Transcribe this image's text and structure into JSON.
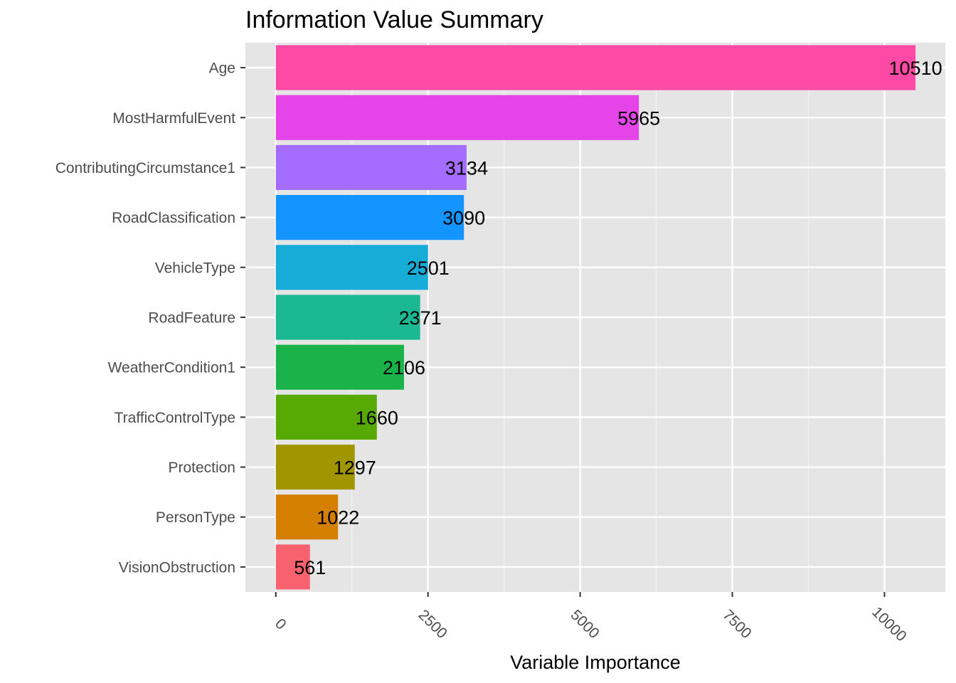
{
  "chart_data": {
    "type": "bar",
    "orientation": "horizontal",
    "title": "Information Value Summary",
    "xlabel": "Variable Importance",
    "ylabel": "",
    "xlim": [
      -500,
      11000
    ],
    "x_ticks": [
      0,
      2500,
      5000,
      7500,
      10000
    ],
    "x_tick_labels": [
      "0",
      "2500",
      "5000",
      "7500",
      "10000"
    ],
    "grid": true,
    "legend": "none",
    "background": "#e5e5e5",
    "categories": [
      "Age",
      "MostHarmfulEvent",
      "ContributingCircumstance1",
      "RoadClassification",
      "VehicleType",
      "RoadFeature",
      "WeatherCondition1",
      "TrafficControlType",
      "Protection",
      "PersonType",
      "VisionObstruction"
    ],
    "values": [
      10510,
      5965,
      3134,
      3090,
      2501,
      2371,
      2106,
      1660,
      1297,
      1022,
      561
    ],
    "data_labels": [
      "10510",
      "5965",
      "3134",
      "3090",
      "2501",
      "2371",
      "2106",
      "1660",
      "1297",
      "1022",
      "561"
    ],
    "colors": [
      "#ff4aa5",
      "#e545e8",
      "#a46cff",
      "#1494ff",
      "#17acd7",
      "#1ab994",
      "#1ab34a",
      "#57aa03",
      "#a19600",
      "#d47f00",
      "#f8626e"
    ]
  }
}
